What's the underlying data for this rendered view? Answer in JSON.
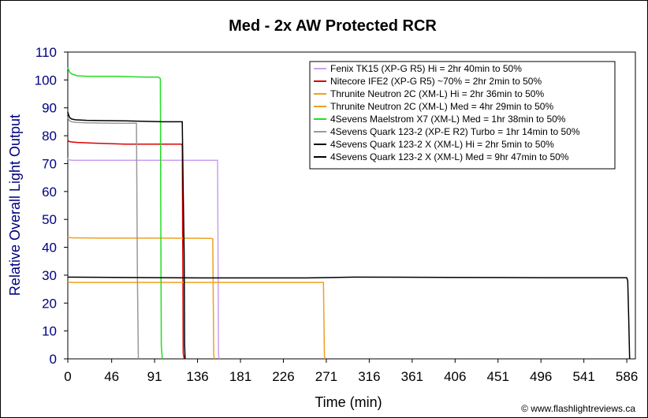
{
  "chart_data": {
    "type": "line",
    "title": "Med - 2x AW Protected RCR",
    "xlabel": "Time (min)",
    "ylabel": "Relative Overall Light Output",
    "xlim": [
      0,
      595
    ],
    "ylim": [
      0,
      110
    ],
    "x_ticks": [
      "0",
      "46",
      "91",
      "136",
      "181",
      "226",
      "271",
      "316",
      "361",
      "406",
      "451",
      "496",
      "541",
      "586"
    ],
    "y_ticks": [
      "0",
      "10",
      "20",
      "30",
      "40",
      "50",
      "60",
      "70",
      "80",
      "90",
      "100",
      "110"
    ],
    "legend_position": "top-right",
    "grid": false,
    "credit": "© www.flashlightreviews.ca",
    "series": [
      {
        "name": "Fenix TK15 (XP-G R5) Hi = 2hr 40min to 50%",
        "color": "#c8a0f0",
        "x": [
          0,
          0.6,
          2,
          5,
          60,
          120,
          155,
          157,
          158,
          159
        ],
        "y": [
          72,
          71.5,
          71.3,
          71.2,
          71.2,
          71.2,
          71.2,
          71.2,
          1,
          0
        ]
      },
      {
        "name": "Nitecore IFE2 (XP-G R5) ~70% = 2hr 2min to 50%",
        "color": "#dd0000",
        "x": [
          0,
          1,
          3,
          10,
          30,
          60,
          90,
          119,
          120,
          121,
          122
        ],
        "y": [
          78.5,
          78,
          77.8,
          77.6,
          77.3,
          77,
          77,
          77,
          76.5,
          2,
          0
        ]
      },
      {
        "name": "Thrunite Neutron 2C (XM-L) Hi = 2hr 36min to 50%",
        "color": "#f0a020",
        "x": [
          0,
          1,
          3,
          30,
          90,
          150,
          152,
          153,
          154
        ],
        "y": [
          43.8,
          43.6,
          43.4,
          43.3,
          43.3,
          43.2,
          43,
          1,
          0
        ]
      },
      {
        "name": "Thrunite Neutron 2C (XM-L) Med = 4hr 29min to 50%",
        "color": "#f0a020",
        "x": [
          0,
          1,
          5,
          100,
          200,
          268,
          269,
          270
        ],
        "y": [
          27.8,
          27.5,
          27.4,
          27.4,
          27.4,
          27.4,
          1,
          0
        ]
      },
      {
        "name": "4Sevens Maelstrom X7 (XM-L) Med = 1hr 38min to 50%",
        "color": "#22dd22",
        "x": [
          0,
          1,
          2,
          4,
          7,
          10,
          20,
          50,
          80,
          95,
          97,
          97.5,
          98,
          99
        ],
        "y": [
          104.5,
          103.5,
          102.8,
          102.2,
          101.8,
          101.5,
          101.3,
          101.3,
          101,
          101,
          100.5,
          50,
          5,
          0
        ]
      },
      {
        "name": "4Sevens Quark 123-2 (XP-E R2) Turbo = 1hr 14min to 50%",
        "color": "#999999",
        "x": [
          0,
          1,
          2,
          4,
          8,
          20,
          50,
          72,
          73,
          74
        ],
        "y": [
          86.5,
          85.8,
          85.3,
          85,
          84.8,
          84.6,
          84.5,
          84.5,
          30,
          0
        ]
      },
      {
        "name": "4Sevens Quark 123-2 X (XM-L) Hi = 2hr 5min to 50%",
        "color": "#000000",
        "x": [
          0,
          1,
          2,
          4,
          8,
          20,
          60,
          100,
          120,
          121,
          122,
          122.5,
          123
        ],
        "y": [
          88.5,
          87.3,
          86.5,
          86,
          85.7,
          85.5,
          85.3,
          85,
          85,
          60,
          38,
          5,
          0
        ]
      },
      {
        "name": "4Sevens Quark 123-2 X (XM-L) Med = 9hr 47min to 50%",
        "color": "#000000",
        "x": [
          0,
          50,
          150,
          250,
          300,
          400,
          500,
          586,
          587,
          588,
          589
        ],
        "y": [
          29.3,
          29.2,
          29,
          29,
          29.3,
          29.2,
          29.1,
          29.1,
          28,
          15,
          0
        ]
      }
    ]
  }
}
